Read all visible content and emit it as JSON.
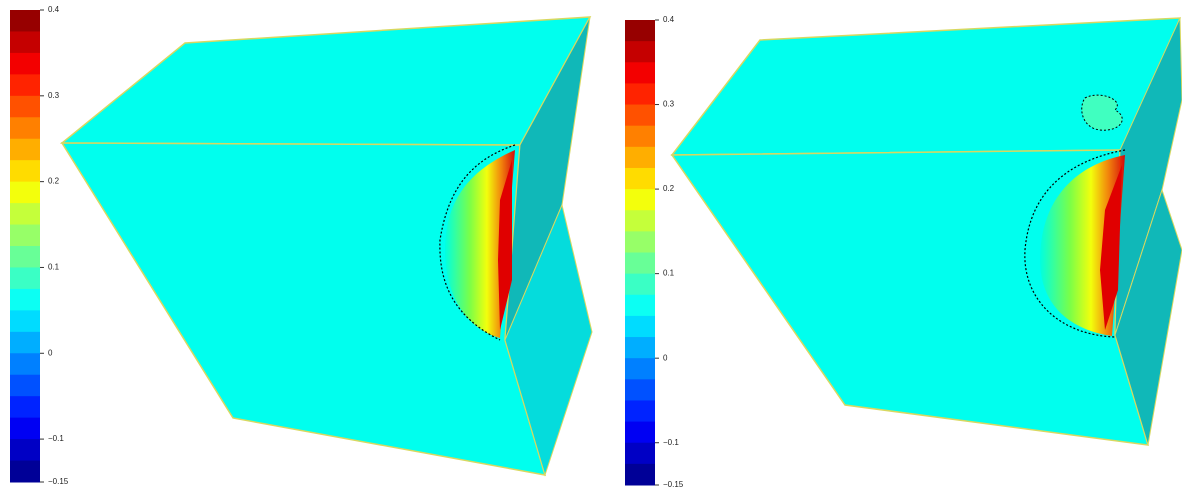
{
  "panels": [
    {
      "colorbar": {
        "lim": [
          -0.15,
          0.4
        ],
        "ticks": [
          0.4,
          0.3,
          0.2,
          0.1,
          0,
          {
            "value": -0.1,
            "label": "−0.1"
          },
          {
            "value": -0.15,
            "label": "−0.15"
          }
        ]
      }
    },
    {
      "colorbar": {
        "lim": [
          -0.15,
          0.4
        ],
        "ticks": [
          0.4,
          0.3,
          0.2,
          0.1,
          0,
          {
            "value": -0.1,
            "label": "−0.1"
          },
          {
            "value": -0.15,
            "label": "−0.15"
          }
        ]
      }
    }
  ]
}
